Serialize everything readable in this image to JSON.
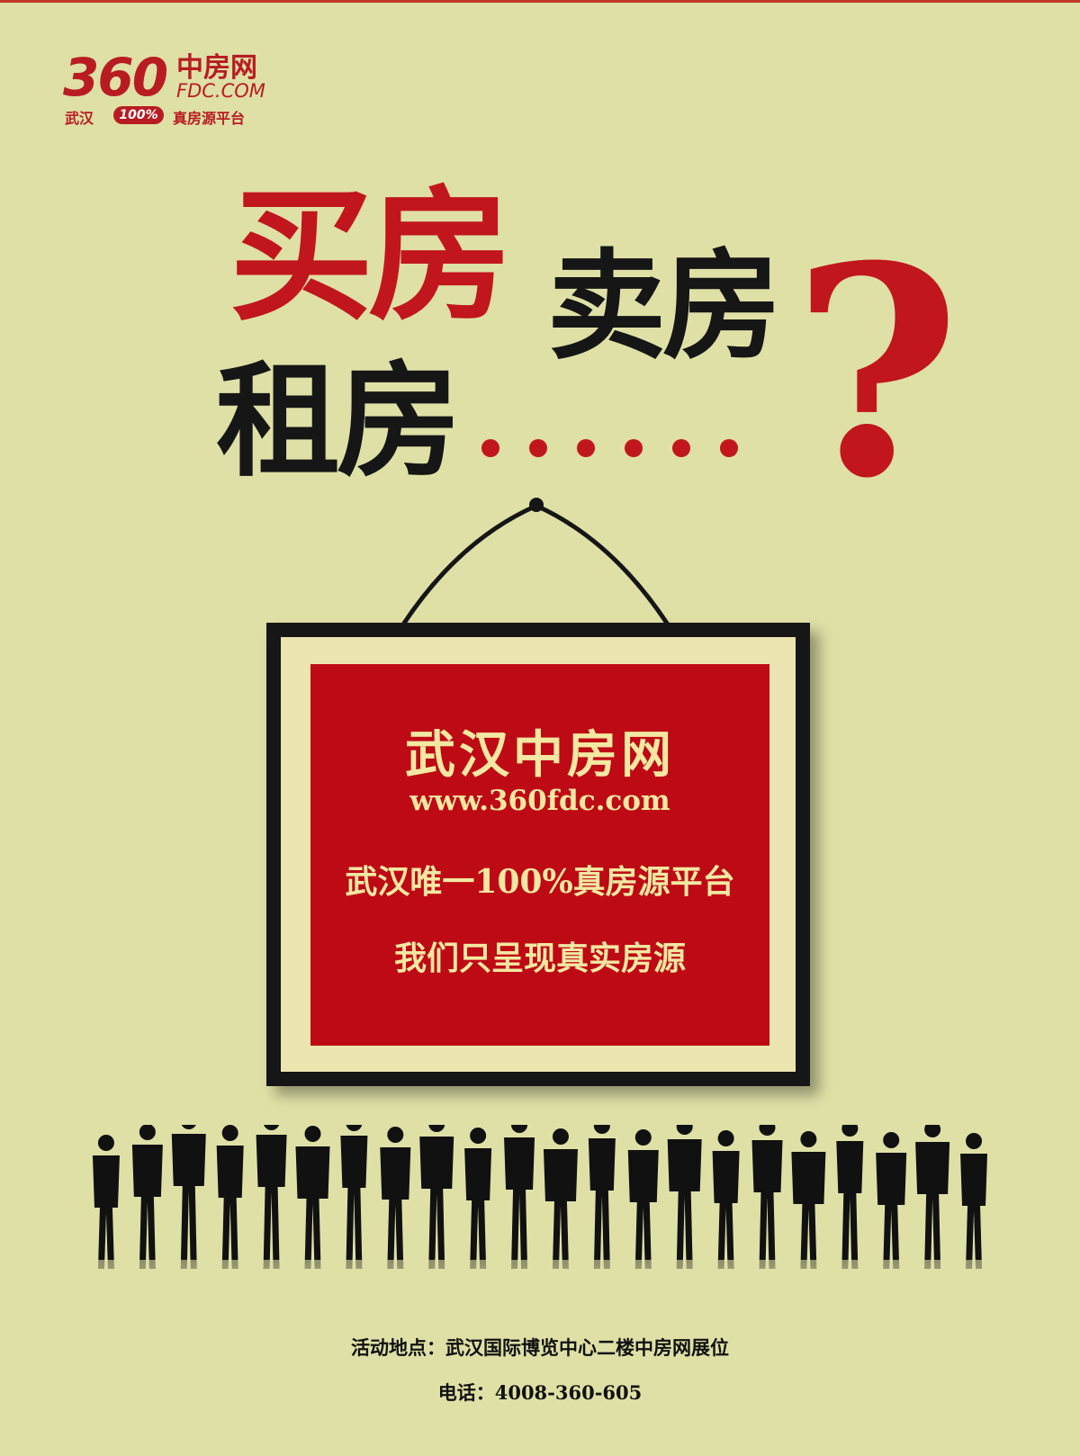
{
  "logo": {
    "number": "360",
    "brand": "中房网",
    "domain": "FDC.COM",
    "city": "武汉",
    "badge": "100%",
    "slogan": "真房源平台"
  },
  "headline": {
    "buy": "买房",
    "sell": "卖房",
    "rent": "租房",
    "question_mark": "?"
  },
  "sign": {
    "brand": "武汉中房网",
    "url": "www.360fdc.com",
    "slogan": "武汉唯一100%真房源平台",
    "promise": "我们只呈现真实房源"
  },
  "footer": {
    "venue": "活动地点：武汉国际博览中心二楼中房网展位",
    "phone": "电话：4008-360-605"
  },
  "colors": {
    "background": "#dfe0a6",
    "brand_red": "#c1161e",
    "panel_red": "#be0a15",
    "panel_text": "#f2e8a2",
    "black": "#161616"
  }
}
